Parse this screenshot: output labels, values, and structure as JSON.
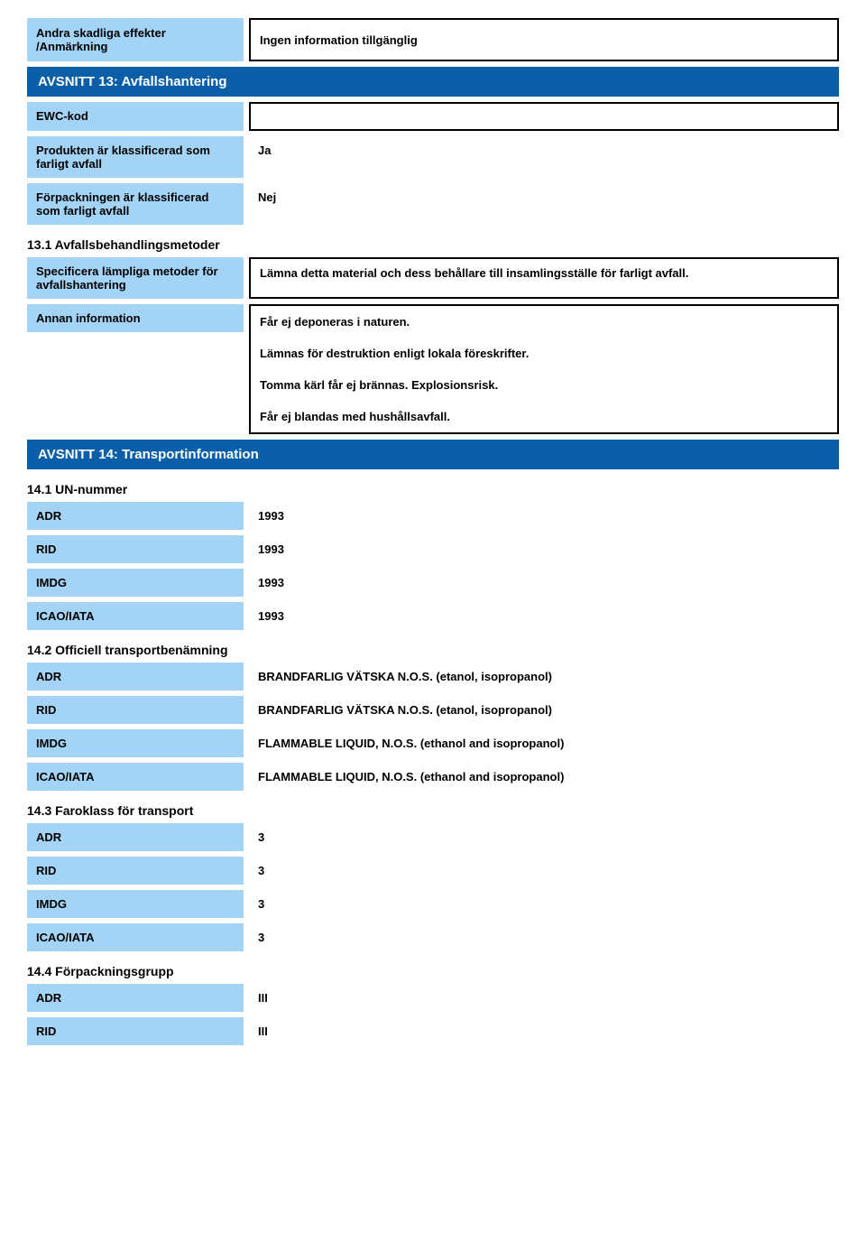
{
  "colors": {
    "label_bg": "#a3d3f5",
    "header_bg": "#0a5fa8",
    "header_fg": "#ffffff",
    "border": "#000000",
    "body_bg": "#ffffff"
  },
  "top": {
    "other_effects_label": "Andra skadliga effekter /Anmärkning",
    "other_effects_value": "Ingen information tillgänglig"
  },
  "section13": {
    "title": "AVSNITT 13: Avfallshantering",
    "ewc_label": "EWC-kod",
    "ewc_value": "",
    "hazardous_product_label": "Produkten är klassificerad som farligt avfall",
    "hazardous_product_value": "Ja",
    "hazardous_packaging_label": "Förpackningen är klassificerad som farligt avfall",
    "hazardous_packaging_value": "Nej",
    "sub_13_1": "13.1 Avfallsbehandlingsmetoder",
    "methods_label": "Specificera lämpliga metoder för avfallshantering",
    "methods_value": "Lämna detta material och dess behållare till insamlingsställe för farligt avfall.",
    "other_info_label": "Annan information",
    "other_info_1": "Får ej deponeras i naturen.",
    "other_info_2": "Lämnas för destruktion enligt lokala föreskrifter.",
    "other_info_3": "Tomma kärl får ej brännas. Explosionsrisk.",
    "other_info_4": "Får ej blandas med hushållsavfall."
  },
  "section14": {
    "title": "AVSNITT 14: Transportinformation",
    "sub_14_1": "14.1 UN-nummer",
    "adr_label": "ADR",
    "rid_label": "RID",
    "imdg_label": "IMDG",
    "icao_label": "ICAO/IATA",
    "un_adr": "1993",
    "un_rid": "1993",
    "un_imdg": "1993",
    "un_icao": "1993",
    "sub_14_2": "14.2 Officiell transportbenämning",
    "name_adr": "BRANDFARLIG VÄTSKA N.O.S. (etanol, isopropanol)",
    "name_rid": "BRANDFARLIG VÄTSKA N.O.S. (etanol, isopropanol)",
    "name_imdg": "FLAMMABLE LIQUID, N.O.S. (ethanol and isopropanol)",
    "name_icao": "FLAMMABLE LIQUID, N.O.S. (ethanol and isopropanol)",
    "sub_14_3": "14.3 Faroklass för transport",
    "class_adr": "3",
    "class_rid": "3",
    "class_imdg": "3",
    "class_icao": "3",
    "sub_14_4": "14.4 Förpackningsgrupp",
    "pg_adr": "III",
    "pg_rid": "III"
  }
}
